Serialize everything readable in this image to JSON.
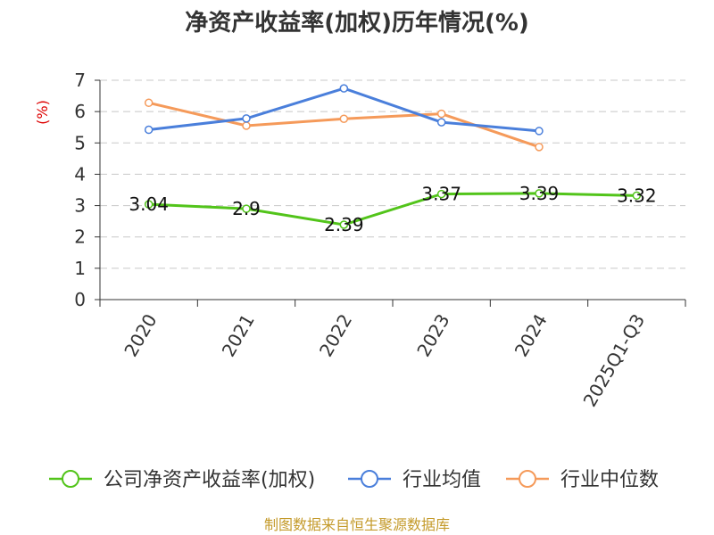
{
  "chart_data": {
    "type": "line",
    "title": "净资产收益率(加权)历年情况(%)",
    "ylabel": "(%)",
    "xlabel": "",
    "categories": [
      "2020",
      "2021",
      "2022",
      "2023",
      "2024",
      "2025Q1-Q3"
    ],
    "ylim": [
      0,
      7
    ],
    "yticks": [
      0,
      1,
      2,
      3,
      4,
      5,
      6,
      7
    ],
    "grid": true,
    "legend_position": "bottom",
    "series": [
      {
        "name": "公司净资产收益率(加权)",
        "color": "#52c41a",
        "values": [
          3.04,
          2.9,
          2.39,
          3.37,
          3.39,
          3.32
        ],
        "labels": [
          "3.04",
          "2.9",
          "2.39",
          "3.37",
          "3.39",
          "3.32"
        ]
      },
      {
        "name": "行业均值",
        "color": "#4a7fdb",
        "values": [
          5.42,
          5.78,
          6.74,
          5.66,
          5.38,
          null
        ]
      },
      {
        "name": "行业中位数",
        "color": "#f59a5a",
        "values": [
          6.28,
          5.55,
          5.77,
          5.93,
          4.87,
          null
        ]
      }
    ]
  },
  "source": "制图数据来自恒生聚源数据库"
}
